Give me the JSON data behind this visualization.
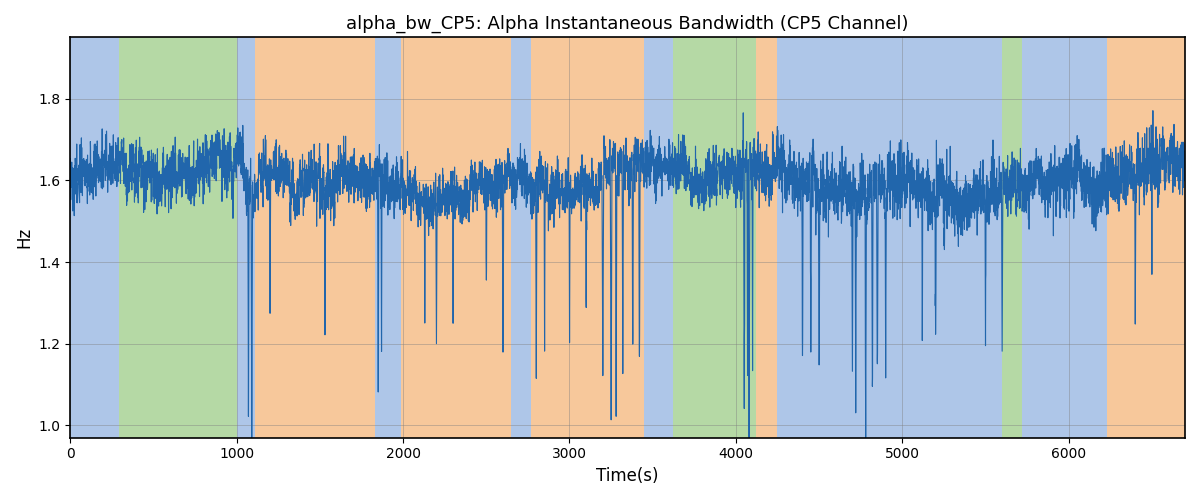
{
  "title": "alpha_bw_CP5: Alpha Instantaneous Bandwidth (CP5 Channel)",
  "xlabel": "Time(s)",
  "ylabel": "Hz",
  "xlim": [
    0,
    6700
  ],
  "ylim": [
    0.97,
    1.95
  ],
  "yticks": [
    1.0,
    1.2,
    1.4,
    1.6,
    1.8
  ],
  "xticks": [
    0,
    1000,
    2000,
    3000,
    4000,
    5000,
    6000
  ],
  "line_color": "#2166ac",
  "line_width": 0.8,
  "bg_segments": [
    {
      "start": 0,
      "end": 290,
      "color": "#aec6e8"
    },
    {
      "start": 290,
      "end": 1000,
      "color": "#b5d9a5"
    },
    {
      "start": 1000,
      "end": 1110,
      "color": "#aec6e8"
    },
    {
      "start": 1110,
      "end": 1830,
      "color": "#f7c89b"
    },
    {
      "start": 1830,
      "end": 1990,
      "color": "#aec6e8"
    },
    {
      "start": 1990,
      "end": 2650,
      "color": "#f7c89b"
    },
    {
      "start": 2650,
      "end": 2770,
      "color": "#aec6e8"
    },
    {
      "start": 2770,
      "end": 3450,
      "color": "#f7c89b"
    },
    {
      "start": 3450,
      "end": 3620,
      "color": "#aec6e8"
    },
    {
      "start": 3620,
      "end": 4120,
      "color": "#b5d9a5"
    },
    {
      "start": 4120,
      "end": 4250,
      "color": "#f7c89b"
    },
    {
      "start": 4250,
      "end": 4700,
      "color": "#aec6e8"
    },
    {
      "start": 4700,
      "end": 5600,
      "color": "#aec6e8"
    },
    {
      "start": 5600,
      "end": 5720,
      "color": "#b5d9a5"
    },
    {
      "start": 5720,
      "end": 6230,
      "color": "#aec6e8"
    },
    {
      "start": 6230,
      "end": 6800,
      "color": "#f7c89b"
    }
  ],
  "seed": 42,
  "n_points": 6700
}
